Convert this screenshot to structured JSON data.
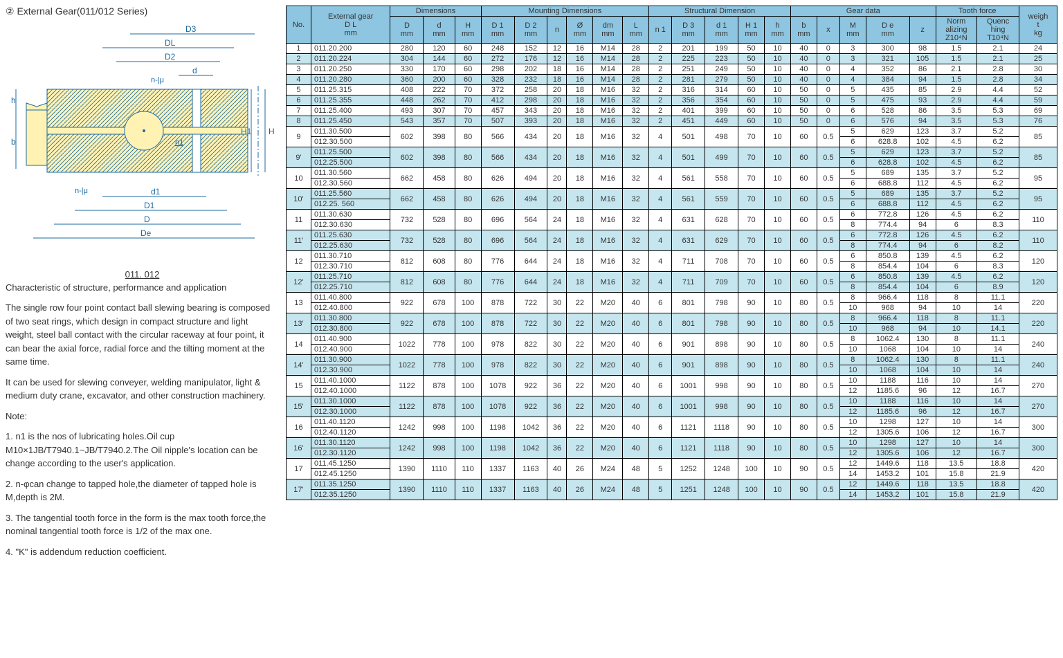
{
  "title": "②  External Gear(011/012 Series)",
  "diagram_labels": {
    "D3": "D3",
    "DL": "DL",
    "D2": "D2",
    "d": "d",
    "H1": "H1",
    "H": "H",
    "d1": "d1",
    "D1": "D1",
    "D": "D",
    "De": "De",
    "h": "h",
    "b": "b",
    "n_mu_top": "n-|μ",
    "n_mu_bot": "n-|μ",
    "n1": "n1"
  },
  "struct_title": "011. 012",
  "subtitle": "Characteristic of structure, performance and application",
  "para1": "The single row four point contact ball slewing bearing is composed of two seat rings, which design in compact structure and light weight, steel ball contact with the circular raceway at four point, it can bear the axial force, radial force and the tilting moment at the same time.",
  "para2": "It can be used for slewing conveyer, welding manipulator, light & medium duty crane, excavator, and other construction machinery.",
  "note_head": "Note:",
  "note1": "1. n1 is the nos of lubricating holes.Oil cup M10×1JB/T7940.1~JB/T7940.2.The Oil nipple's    location can be change according to the user's application.",
  "note2": "2. n-φcan change to tapped hole,the diameter of tapped hole is M,depth is 2M.",
  "note3": "3. The tangential tooth force in the form is the max tooth force,the nominal tangential    tooth force is 1/2 of the max one.",
  "note4": "4. \"K\" is addendum reduction coefficient.",
  "headers": {
    "no": "No.",
    "ext": "External gear\nD L\nmm",
    "dim": "Dimensions",
    "mount": "Mounting Dimensions",
    "struct": "Structural Dimension",
    "gear_g": "Gear data",
    "tooth": "Tooth force",
    "weight": "weigh\nt\nkg",
    "D": "D\nmm",
    "d": "d\nmm",
    "H": "H\nmm",
    "D1": "D 1\nmm",
    "D2": "D 2\nmm",
    "n": "n",
    "phi": "Ø\nmm",
    "dm": "dm\nmm",
    "L": "L\nmm",
    "n1": "n 1",
    "D3": "D 3\nmm",
    "d1": "d 1\nmm",
    "H1": "H 1\nmm",
    "hh": "h\nmm",
    "bb": "b\nmm",
    "x": "x",
    "M": "M\nmm",
    "De": "D e\nmm",
    "z": "z",
    "norm": "Norm\nalizing\nZ10⁴N",
    "quen": "Quenc\nhing\nT10⁴N"
  },
  "rows_single": [
    [
      "1",
      "011.20.200",
      "280",
      "120",
      "60",
      "248",
      "152",
      "12",
      "16",
      "M14",
      "28",
      "2",
      "201",
      "199",
      "50",
      "10",
      "40",
      "0",
      "3",
      "300",
      "98",
      "1.5",
      "2.1",
      "24"
    ],
    [
      "2",
      "011.20.224",
      "304",
      "144",
      "60",
      "272",
      "176",
      "12",
      "16",
      "M14",
      "28",
      "2",
      "225",
      "223",
      "50",
      "10",
      "40",
      "0",
      "3",
      "321",
      "105",
      "1.5",
      "2.1",
      "25"
    ],
    [
      "3",
      "011.20.250",
      "330",
      "170",
      "60",
      "298",
      "202",
      "18",
      "16",
      "M14",
      "28",
      "2",
      "251",
      "249",
      "50",
      "10",
      "40",
      "0",
      "4",
      "352",
      "86",
      "2.1",
      "2.8",
      "30"
    ],
    [
      "4",
      "011.20.280",
      "360",
      "200",
      "60",
      "328",
      "232",
      "18",
      "16",
      "M14",
      "28",
      "2",
      "281",
      "279",
      "50",
      "10",
      "40",
      "0",
      "4",
      "384",
      "94",
      "1.5",
      "2.8",
      "34"
    ],
    [
      "5",
      "011.25.315",
      "408",
      "222",
      "70",
      "372",
      "258",
      "20",
      "18",
      "M16",
      "32",
      "2",
      "316",
      "314",
      "60",
      "10",
      "50",
      "0",
      "5",
      "435",
      "85",
      "2.9",
      "4.4",
      "52"
    ],
    [
      "6",
      "011.25.355",
      "448",
      "262",
      "70",
      "412",
      "298",
      "20",
      "18",
      "M16",
      "32",
      "2",
      "356",
      "354",
      "60",
      "10",
      "50",
      "0",
      "5",
      "475",
      "93",
      "2.9",
      "4.4",
      "59"
    ],
    [
      "7",
      "011.25.400",
      "493",
      "307",
      "70",
      "457",
      "343",
      "20",
      "18",
      "M16",
      "32",
      "2",
      "401",
      "399",
      "60",
      "10",
      "50",
      "0",
      "6",
      "528",
      "86",
      "3.5",
      "5.3",
      "69"
    ],
    [
      "8",
      "011.25.450",
      "543",
      "357",
      "70",
      "507",
      "393",
      "20",
      "18",
      "M16",
      "32",
      "2",
      "451",
      "449",
      "60",
      "10",
      "50",
      "0",
      "6",
      "576",
      "94",
      "3.5",
      "5.3",
      "76"
    ]
  ],
  "rows_double": [
    {
      "no": "9",
      "gears": [
        "011.30.500",
        "012.30.500"
      ],
      "base": [
        "602",
        "398",
        "80",
        "566",
        "434",
        "20",
        "18",
        "M16",
        "32",
        "4",
        "501",
        "498",
        "70",
        "10",
        "60",
        "0.5"
      ],
      "g": [
        [
          "5",
          "629",
          "123",
          "3.7",
          "5.2"
        ],
        [
          "6",
          "628.8",
          "102",
          "4.5",
          "6.2"
        ]
      ],
      "w": "85"
    },
    {
      "no": "9'",
      "gears": [
        "011.25.500",
        "012.25.500"
      ],
      "base": [
        "602",
        "398",
        "80",
        "566",
        "434",
        "20",
        "18",
        "M16",
        "32",
        "4",
        "501",
        "499",
        "70",
        "10",
        "60",
        "0.5"
      ],
      "g": [
        [
          "5",
          "629",
          "123",
          "3.7",
          "5.2"
        ],
        [
          "6",
          "628.8",
          "102",
          "4.5",
          "6.2"
        ]
      ],
      "w": "85"
    },
    {
      "no": "10",
      "gears": [
        "011.30.560",
        "012.30.560"
      ],
      "base": [
        "662",
        "458",
        "80",
        "626",
        "494",
        "20",
        "18",
        "M16",
        "32",
        "4",
        "561",
        "558",
        "70",
        "10",
        "60",
        "0.5"
      ],
      "g": [
        [
          "5",
          "689",
          "135",
          "3.7",
          "5.2"
        ],
        [
          "6",
          "688.8",
          "112",
          "4.5",
          "6.2"
        ]
      ],
      "w": "95"
    },
    {
      "no": "10'",
      "gears": [
        "011.25.560",
        "012.25. 560"
      ],
      "base": [
        "662",
        "458",
        "80",
        "626",
        "494",
        "20",
        "18",
        "M16",
        "32",
        "4",
        "561",
        "559",
        "70",
        "10",
        "60",
        "0.5"
      ],
      "g": [
        [
          "5",
          "689",
          "135",
          "3.7",
          "5.2"
        ],
        [
          "6",
          "688.8",
          "112",
          "4.5",
          "6.2"
        ]
      ],
      "w": "95"
    },
    {
      "no": "11",
      "gears": [
        "011.30.630",
        "012.30.630"
      ],
      "base": [
        "732",
        "528",
        "80",
        "696",
        "564",
        "24",
        "18",
        "M16",
        "32",
        "4",
        "631",
        "628",
        "70",
        "10",
        "60",
        "0.5"
      ],
      "g": [
        [
          "6",
          "772.8",
          "126",
          "4.5",
          "6.2"
        ],
        [
          "8",
          "774.4",
          "94",
          "6",
          "8.3"
        ]
      ],
      "w": "110"
    },
    {
      "no": "11'",
      "gears": [
        "011.25.630",
        "012.25.630"
      ],
      "base": [
        "732",
        "528",
        "80",
        "696",
        "564",
        "24",
        "18",
        "M16",
        "32",
        "4",
        "631",
        "629",
        "70",
        "10",
        "60",
        "0.5"
      ],
      "g": [
        [
          "6",
          "772.8",
          "126",
          "4.5",
          "6.2"
        ],
        [
          "8",
          "774.4",
          "94",
          "6",
          "8.2"
        ]
      ],
      "w": "110"
    },
    {
      "no": "12",
      "gears": [
        "011.30.710",
        "012.30.710"
      ],
      "base": [
        "812",
        "608",
        "80",
        "776",
        "644",
        "24",
        "18",
        "M16",
        "32",
        "4",
        "711",
        "708",
        "70",
        "10",
        "60",
        "0.5"
      ],
      "g": [
        [
          "6",
          "850.8",
          "139",
          "4.5",
          "6.2"
        ],
        [
          "8",
          "854.4",
          "104",
          "6",
          "8.3"
        ]
      ],
      "w": "120"
    },
    {
      "no": "12'",
      "gears": [
        "011.25.710",
        "012.25.710"
      ],
      "base": [
        "812",
        "608",
        "80",
        "776",
        "644",
        "24",
        "18",
        "M16",
        "32",
        "4",
        "711",
        "709",
        "70",
        "10",
        "60",
        "0.5"
      ],
      "g": [
        [
          "6",
          "850.8",
          "139",
          "4.5",
          "6.2"
        ],
        [
          "8",
          "854.4",
          "104",
          "6",
          "8.9"
        ]
      ],
      "w": "120"
    },
    {
      "no": "13",
      "gears": [
        "011.40.800",
        "012.40.800"
      ],
      "base": [
        "922",
        "678",
        "100",
        "878",
        "722",
        "30",
        "22",
        "M20",
        "40",
        "6",
        "801",
        "798",
        "90",
        "10",
        "80",
        "0.5"
      ],
      "g": [
        [
          "8",
          "966.4",
          "118",
          "8",
          "11.1"
        ],
        [
          "10",
          "968",
          "94",
          "10",
          "14"
        ]
      ],
      "w": "220"
    },
    {
      "no": "13'",
      "gears": [
        "011.30.800",
        "012.30.800"
      ],
      "base": [
        "922",
        "678",
        "100",
        "878",
        "722",
        "30",
        "22",
        "M20",
        "40",
        "6",
        "801",
        "798",
        "90",
        "10",
        "80",
        "0.5"
      ],
      "g": [
        [
          "8",
          "966.4",
          "118",
          "8",
          "11.1"
        ],
        [
          "10",
          "968",
          "94",
          "10",
          "14.1"
        ]
      ],
      "w": "220"
    },
    {
      "no": "14",
      "gears": [
        "011.40.900",
        "012.40.900"
      ],
      "base": [
        "1022",
        "778",
        "100",
        "978",
        "822",
        "30",
        "22",
        "M20",
        "40",
        "6",
        "901",
        "898",
        "90",
        "10",
        "80",
        "0.5"
      ],
      "g": [
        [
          "8",
          "1062.4",
          "130",
          "8",
          "11.1"
        ],
        [
          "10",
          "1068",
          "104",
          "10",
          "14"
        ]
      ],
      "w": "240"
    },
    {
      "no": "14'",
      "gears": [
        "011.30.900",
        "012.30.900"
      ],
      "base": [
        "1022",
        "778",
        "100",
        "978",
        "822",
        "30",
        "22",
        "M20",
        "40",
        "6",
        "901",
        "898",
        "90",
        "10",
        "80",
        "0.5"
      ],
      "g": [
        [
          "8",
          "1062.4",
          "130",
          "8",
          "11.1"
        ],
        [
          "10",
          "1068",
          "104",
          "10",
          "14"
        ]
      ],
      "w": "240"
    },
    {
      "no": "15",
      "gears": [
        "011.40.1000",
        "012.40.1000"
      ],
      "base": [
        "1122",
        "878",
        "100",
        "1078",
        "922",
        "36",
        "22",
        "M20",
        "40",
        "6",
        "1001",
        "998",
        "90",
        "10",
        "80",
        "0.5"
      ],
      "g": [
        [
          "10",
          "1188",
          "116",
          "10",
          "14"
        ],
        [
          "12",
          "1185.6",
          "96",
          "12",
          "16.7"
        ]
      ],
      "w": "270"
    },
    {
      "no": "15'",
      "gears": [
        "011.30.1000",
        "012.30.1000"
      ],
      "base": [
        "1122",
        "878",
        "100",
        "1078",
        "922",
        "36",
        "22",
        "M20",
        "40",
        "6",
        "1001",
        "998",
        "90",
        "10",
        "80",
        "0.5"
      ],
      "g": [
        [
          "10",
          "1188",
          "116",
          "10",
          "14"
        ],
        [
          "12",
          "1185.6",
          "96",
          "12",
          "16.7"
        ]
      ],
      "w": "270"
    },
    {
      "no": "16",
      "gears": [
        "011.40.1120",
        "012.40.1120"
      ],
      "base": [
        "1242",
        "998",
        "100",
        "1198",
        "1042",
        "36",
        "22",
        "M20",
        "40",
        "6",
        "1121",
        "1118",
        "90",
        "10",
        "80",
        "0.5"
      ],
      "g": [
        [
          "10",
          "1298",
          "127",
          "10",
          "14"
        ],
        [
          "12",
          "1305.6",
          "106",
          "12",
          "16.7"
        ]
      ],
      "w": "300"
    },
    {
      "no": "16'",
      "gears": [
        "011.30.1120",
        "012.30.1120"
      ],
      "base": [
        "1242",
        "998",
        "100",
        "1198",
        "1042",
        "36",
        "22",
        "M20",
        "40",
        "6",
        "1121",
        "1118",
        "90",
        "10",
        "80",
        "0.5"
      ],
      "g": [
        [
          "10",
          "1298",
          "127",
          "10",
          "14"
        ],
        [
          "12",
          "1305.6",
          "106",
          "12",
          "16.7"
        ]
      ],
      "w": "300"
    },
    {
      "no": "17",
      "gears": [
        "011.45.1250",
        "012.45.1250"
      ],
      "base": [
        "1390",
        "1110",
        "110",
        "1337",
        "1163",
        "40",
        "26",
        "M24",
        "48",
        "5",
        "1252",
        "1248",
        "100",
        "10",
        "90",
        "0.5"
      ],
      "g": [
        [
          "12",
          "1449.6",
          "118",
          "13.5",
          "18.8"
        ],
        [
          "14",
          "1453.2",
          "101",
          "15.8",
          "21.9"
        ]
      ],
      "w": "420"
    },
    {
      "no": "17'",
      "gears": [
        "011.35.1250",
        "012.35.1250"
      ],
      "base": [
        "1390",
        "1110",
        "110",
        "1337",
        "1163",
        "40",
        "26",
        "M24",
        "48",
        "5",
        "1251",
        "1248",
        "100",
        "10",
        "90",
        "0.5"
      ],
      "g": [
        [
          "12",
          "1449.6",
          "118",
          "13.5",
          "18.8"
        ],
        [
          "14",
          "1453.2",
          "101",
          "15.8",
          "21.9"
        ]
      ],
      "w": "420"
    }
  ],
  "style": {
    "header_bg": "#8ec5e0",
    "row_even_bg": "#c6e6ef",
    "row_odd_bg": "#ffffff",
    "border": "#000000",
    "diagram_fill": "#fff2b3",
    "diagram_stroke": "#1a6aa2"
  }
}
